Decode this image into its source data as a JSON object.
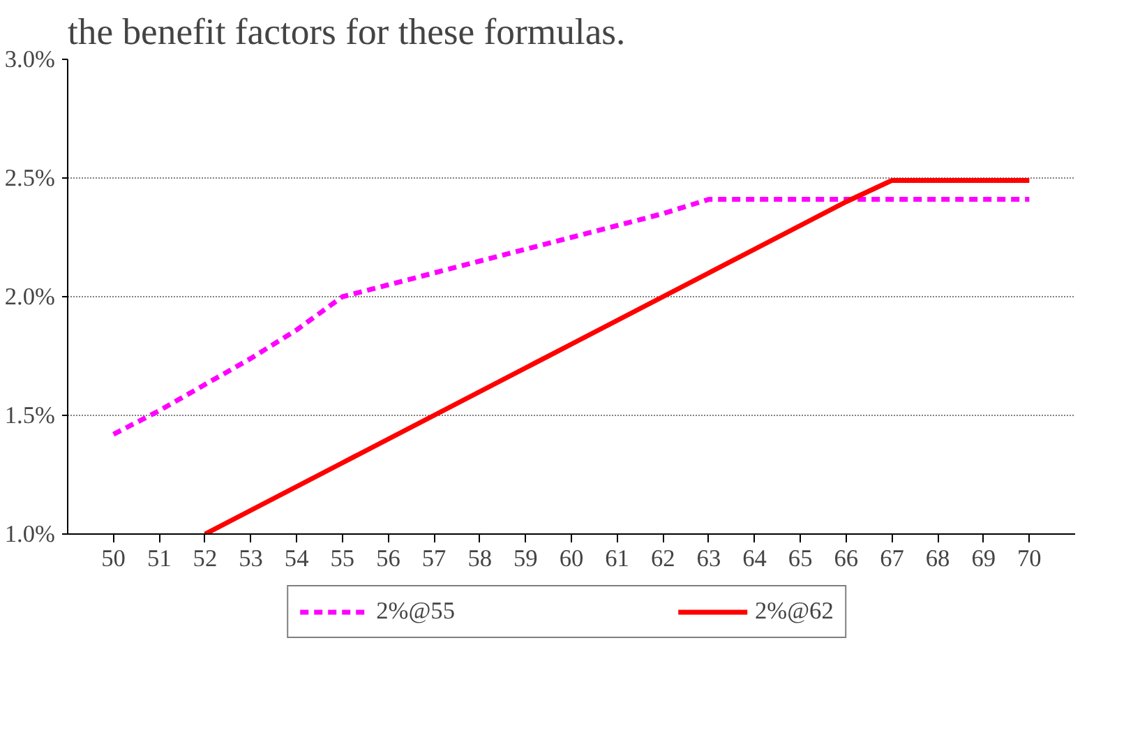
{
  "chart_data": {
    "type": "line",
    "title": "the benefit factors for these formulas.",
    "categories": [
      "50",
      "51",
      "52",
      "53",
      "54",
      "55",
      "56",
      "57",
      "58",
      "59",
      "60",
      "61",
      "62",
      "63",
      "64",
      "65",
      "66",
      "67",
      "68",
      "69",
      "70"
    ],
    "series": [
      {
        "name": "2%@55",
        "color": "#ff00ff",
        "line_style": "dashed",
        "values": [
          1.42,
          1.52,
          1.63,
          1.74,
          1.86,
          2.0,
          2.05,
          2.1,
          2.15,
          2.2,
          2.25,
          2.3,
          2.35,
          2.41,
          2.41,
          2.41,
          2.41,
          2.41,
          2.41,
          2.41,
          2.41
        ]
      },
      {
        "name": "2%@62",
        "color": "#ff0000",
        "line_style": "solid",
        "values": [
          null,
          null,
          1.0,
          1.1,
          1.2,
          1.3,
          1.4,
          1.5,
          1.6,
          1.7,
          1.8,
          1.9,
          2.0,
          2.1,
          2.2,
          2.3,
          2.4,
          2.49,
          2.49,
          2.49,
          2.49
        ]
      }
    ],
    "ylim": [
      1.0,
      3.0
    ],
    "yticks": [
      {
        "value": 1.0,
        "label": "1.0%"
      },
      {
        "value": 1.5,
        "label": "1.5%"
      },
      {
        "value": 2.0,
        "label": "2.0%"
      },
      {
        "value": 2.5,
        "label": "2.5%"
      },
      {
        "value": 3.0,
        "label": "3.0%"
      }
    ],
    "grid": "y",
    "legend": "bottom",
    "marker": "none"
  }
}
